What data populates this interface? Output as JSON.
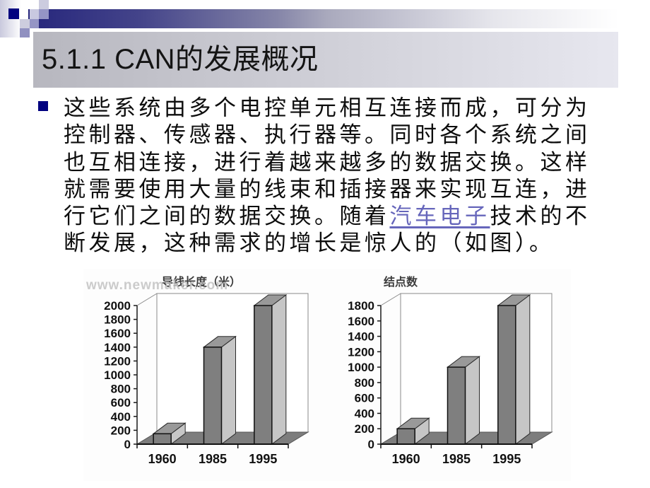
{
  "slide": {
    "title": "5.1.1 CAN的发展概况"
  },
  "body": {
    "line1": "这些系统由多个电控单元相互连接而成，可分为",
    "line2": "控制器、传感器、执行器等。同时各个系统之间",
    "line3": "也互相连接，进行着越来越多的数据交换。这样",
    "line4": "就需要使用大量的线束和插接器来实现互连，进",
    "line5_pre": "行它们之间的数据交换。随着",
    "line5_link": "汽车电子",
    "line5_post": "技术的不",
    "line6": "断发展，这种需求的增长是惊人的（如图）。"
  },
  "figure": {
    "watermark": "www.newmaker.com"
  },
  "icons": {
    "bullet": "square-bullet"
  },
  "colors": {
    "accent_navy": "#00007f",
    "link": "#6666bb",
    "title_box_left": "#b7b7bf",
    "title_box_right": "#e7e7ef",
    "bar_front": "#7f7f7f",
    "bar_side": "#c6c6c6",
    "bar_top": "#999999",
    "floor": "#7d7d7d"
  },
  "chart_data": [
    {
      "type": "bar",
      "title": "导线长度（米）",
      "categories": [
        "1960",
        "1985",
        "1995"
      ],
      "values": [
        150,
        1400,
        2000
      ],
      "ylim": [
        0,
        2000
      ],
      "ytick_step": 200,
      "xlabel": "",
      "ylabel": "",
      "grid": false,
      "legend": "none",
      "style": "3d-column-grayscale"
    },
    {
      "type": "bar",
      "title": "结点数",
      "categories": [
        "1960",
        "1985",
        "1995"
      ],
      "values": [
        200,
        1000,
        1800
      ],
      "ylim": [
        0,
        1800
      ],
      "ytick_step": 200,
      "xlabel": "",
      "ylabel": "",
      "grid": false,
      "legend": "none",
      "style": "3d-column-grayscale"
    }
  ]
}
